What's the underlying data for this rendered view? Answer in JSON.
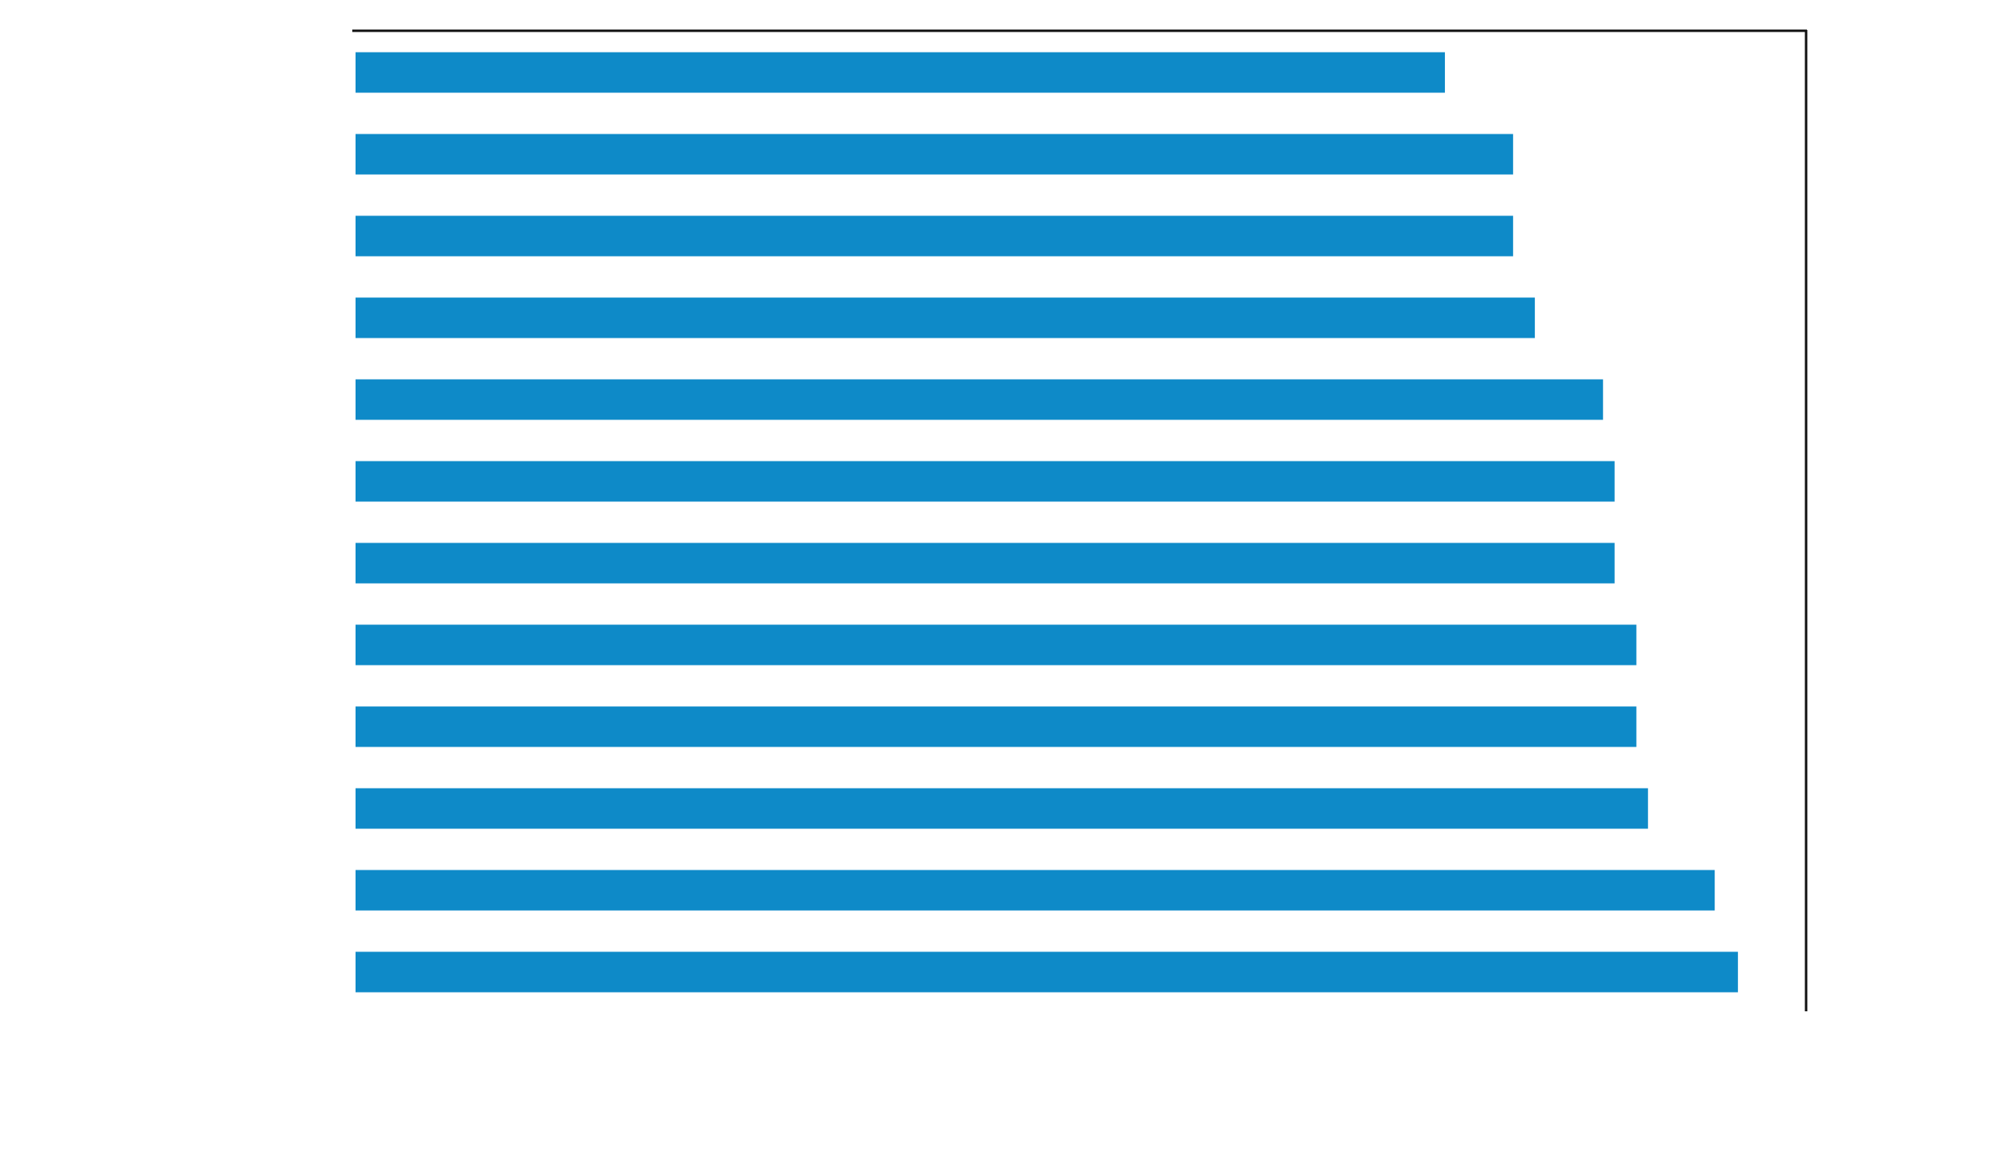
{
  "chart_data": {
    "type": "barh",
    "categories": [
      null,
      null,
      null,
      null,
      null,
      null,
      null,
      null,
      null,
      null,
      null,
      null
    ],
    "values": [
      75.1,
      79.8,
      79.8,
      81.3,
      86.0,
      86.8,
      86.8,
      88.3,
      88.3,
      89.1,
      93.7,
      95.3
    ],
    "color": "#0e8ac8",
    "xlim": [
      0,
      100
    ]
  }
}
